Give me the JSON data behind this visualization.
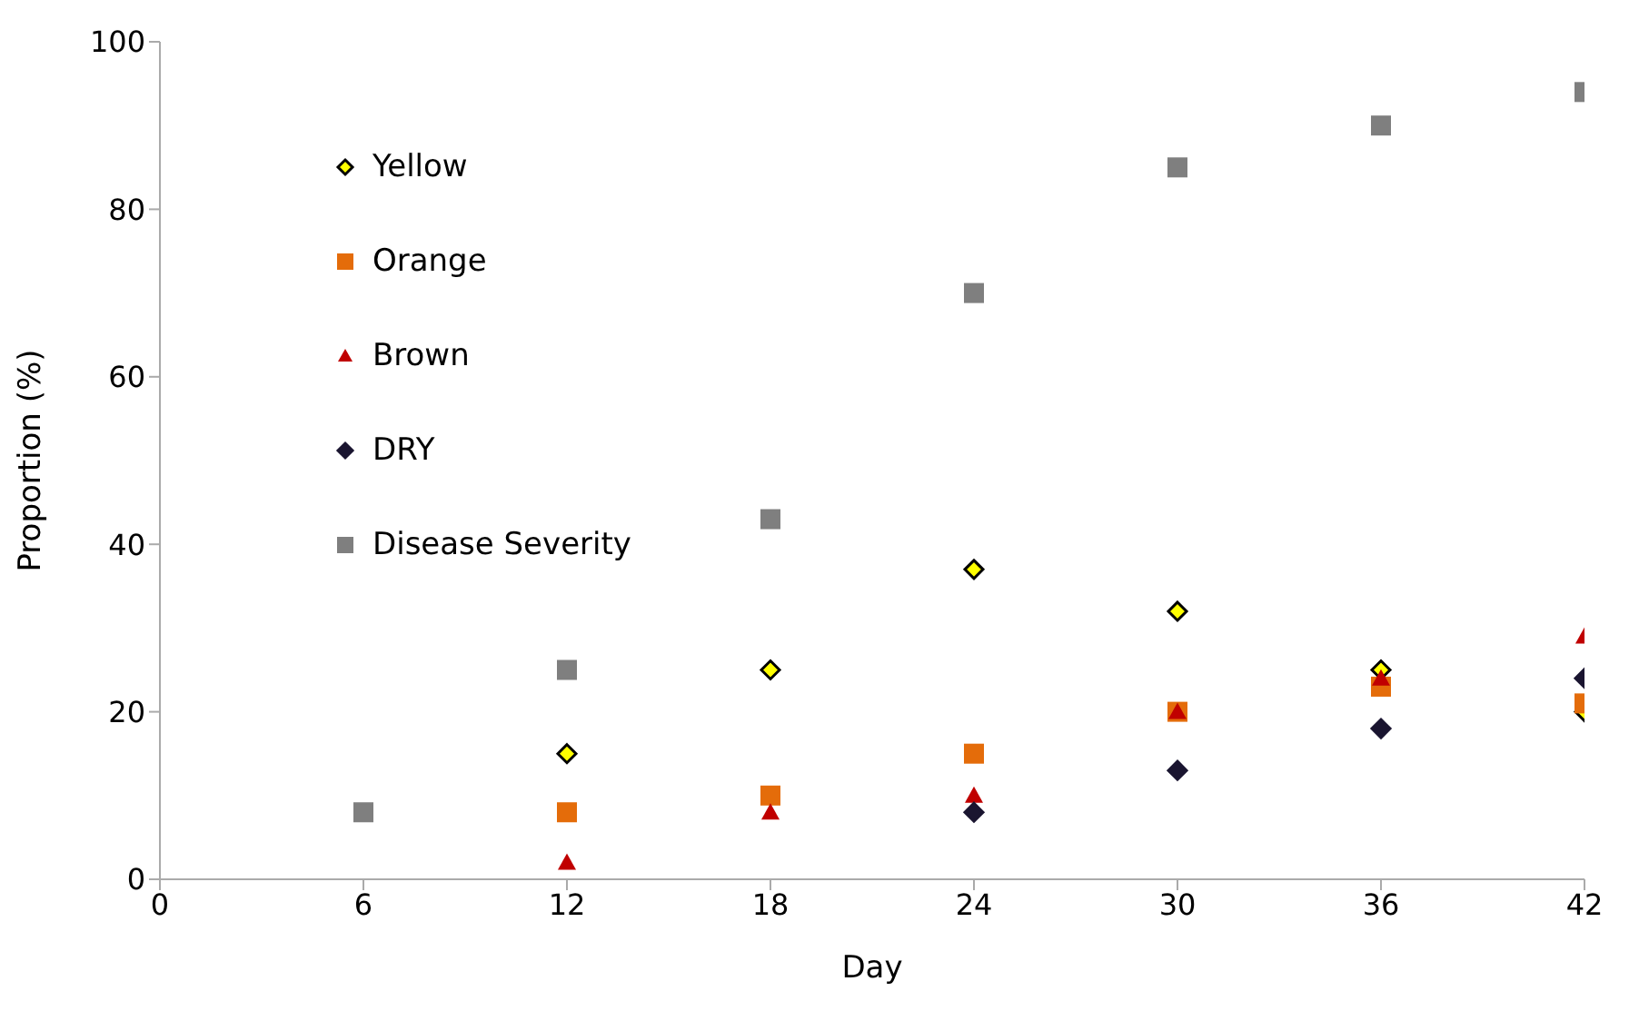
{
  "chart_data": {
    "type": "scatter",
    "xlabel": "Day",
    "ylabel": "Proportion (%)",
    "x": [
      6,
      12,
      18,
      24,
      30,
      36,
      42
    ],
    "xlim": [
      0,
      42
    ],
    "xticks": [
      0,
      6,
      12,
      18,
      24,
      30,
      36,
      42
    ],
    "ylim": [
      0,
      100
    ],
    "yticks": [
      0,
      20,
      40,
      60,
      80,
      100
    ],
    "grid": false,
    "legend": "top left",
    "series": [
      {
        "name": "Yellow",
        "color": "#ffff00",
        "marker": "diamond",
        "values": [
          null,
          15,
          25,
          37,
          32,
          25,
          20
        ]
      },
      {
        "name": "Orange",
        "color": "#e46c0a",
        "marker": "square",
        "values": [
          null,
          8,
          10,
          15,
          20,
          23,
          21
        ]
      },
      {
        "name": "Brown",
        "color": "#c00000",
        "marker": "triangle",
        "values": [
          null,
          2,
          8,
          10,
          20,
          24,
          29
        ]
      },
      {
        "name": "DRY",
        "color": "#1a1530",
        "marker": "diamond",
        "values": [
          null,
          null,
          null,
          8,
          13,
          18,
          24
        ]
      },
      {
        "name": "Disease Severity",
        "color": "#7f7f7f",
        "marker": "square",
        "values": [
          8,
          25,
          43,
          70,
          85,
          90,
          94
        ]
      }
    ]
  }
}
